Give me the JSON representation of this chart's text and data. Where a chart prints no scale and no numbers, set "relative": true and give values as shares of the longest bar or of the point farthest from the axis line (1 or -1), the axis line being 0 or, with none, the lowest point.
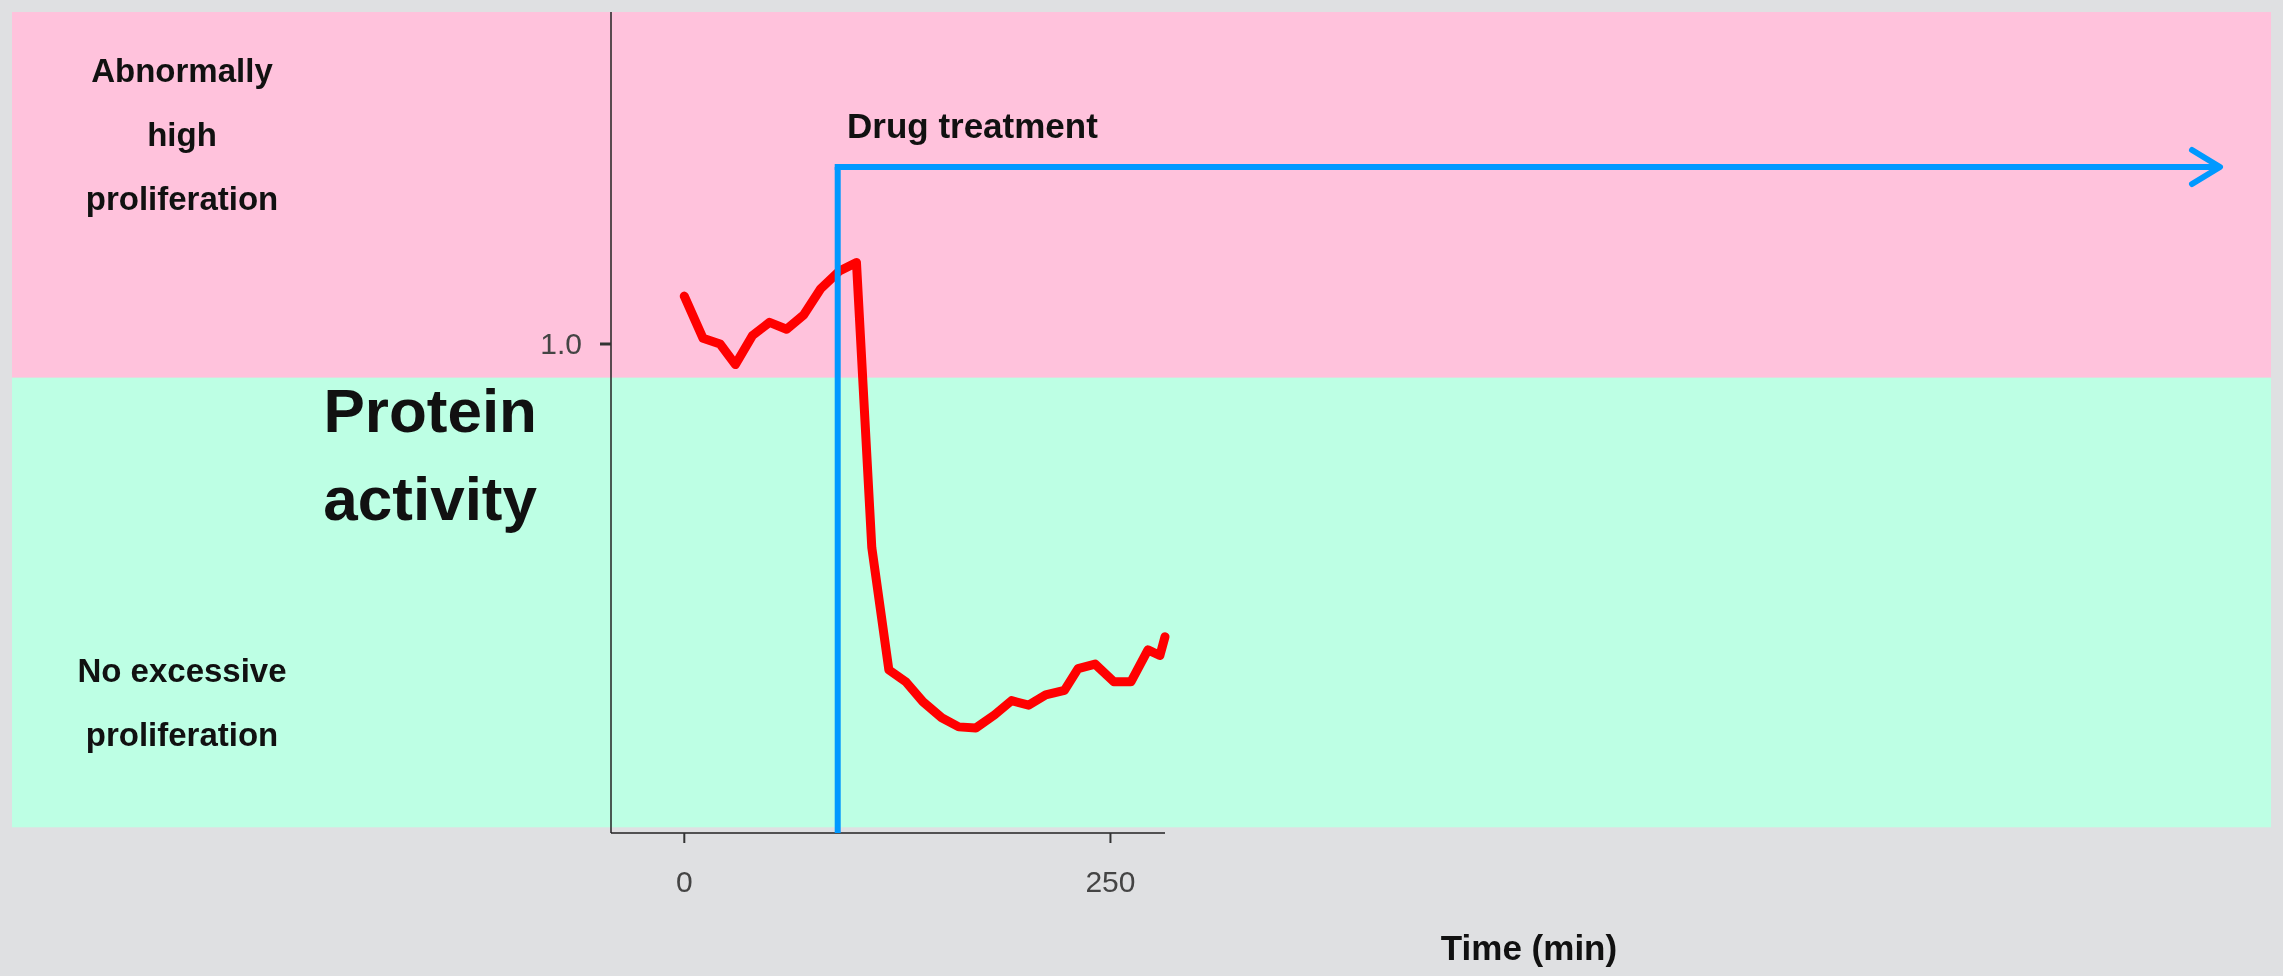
{
  "chart_data": {
    "type": "line",
    "relative": true,
    "ylabel": "Protein activity",
    "xlim": [
      -43,
      282
    ],
    "xticks": [
      0,
      250
    ],
    "series": [
      {
        "color": "#ff0000",
        "x": [
          0,
          11,
          21,
          30,
          40,
          50,
          60,
          70,
          80,
          91,
          101,
          110,
          120,
          130,
          140,
          151,
          161,
          171,
          182,
          192,
          202,
          212,
          223,
          231,
          241,
          252,
          262,
          272,
          279,
          282
        ],
        "values": [
          0.941,
          0.867,
          0.857,
          0.821,
          0.872,
          0.895,
          0.883,
          0.908,
          0.954,
          0.985,
          1.0,
          0.5,
          0.286,
          0.265,
          0.23,
          0.202,
          0.186,
          0.184,
          0.207,
          0.232,
          0.224,
          0.242,
          0.25,
          0.288,
          0.296,
          0.265,
          0.265,
          0.321,
          0.311,
          0.344
        ]
      }
    ],
    "bands": [
      {
        "axis": "y",
        "from": 0.798,
        "to": 1.439,
        "label": "Abnormally high proliferation",
        "color": "#ffc2dc"
      },
      {
        "axis": "y",
        "from": 0.01,
        "to": 0.798,
        "label": "No excessive proliferation",
        "color": "#bdffe4"
      }
    ],
    "ref_lines": [
      {
        "axis": "x",
        "value": 90,
        "label": "Drug treatment",
        "color": "#0099ff"
      }
    ],
    "annotations": [
      "1.0",
      "Time (min)"
    ]
  }
}
